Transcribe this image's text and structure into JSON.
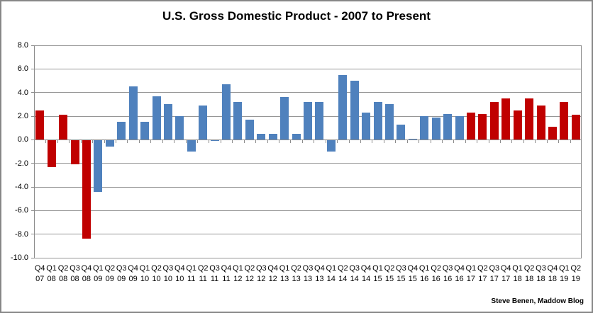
{
  "chart_data": {
    "type": "bar",
    "title": "U.S. Gross Domestic Product - 2007 to Present",
    "attribution": "Steve Benen, Maddow Blog",
    "xlabel": "",
    "ylabel": "",
    "ylim": [
      -10.0,
      8.0
    ],
    "ytick_step": 2.0,
    "ytick_labels": [
      "8.0",
      "6.0",
      "4.0",
      "2.0",
      "0.0",
      "-2.0",
      "-4.0",
      "-6.0",
      "-8.0",
      "-10.0"
    ],
    "grid": true,
    "legend": false,
    "colors": {
      "blue": "#4F81BD",
      "red": "#C00000",
      "gridline": "#969696",
      "axis": "#8C8C8C",
      "background": "#FFFFFF",
      "border": "#878787"
    },
    "bars": [
      {
        "quarter": "Q4",
        "year": "07",
        "value": 2.5,
        "color": "red"
      },
      {
        "quarter": "Q1",
        "year": "08",
        "value": -2.3,
        "color": "red"
      },
      {
        "quarter": "Q2",
        "year": "08",
        "value": 2.1,
        "color": "red"
      },
      {
        "quarter": "Q3",
        "year": "08",
        "value": -2.1,
        "color": "red"
      },
      {
        "quarter": "Q4",
        "year": "08",
        "value": -8.4,
        "color": "red"
      },
      {
        "quarter": "Q1",
        "year": "09",
        "value": -4.4,
        "color": "blue"
      },
      {
        "quarter": "Q2",
        "year": "09",
        "value": -0.6,
        "color": "blue"
      },
      {
        "quarter": "Q3",
        "year": "09",
        "value": 1.5,
        "color": "blue"
      },
      {
        "quarter": "Q4",
        "year": "09",
        "value": 4.5,
        "color": "blue"
      },
      {
        "quarter": "Q1",
        "year": "10",
        "value": 1.5,
        "color": "blue"
      },
      {
        "quarter": "Q2",
        "year": "10",
        "value": 3.7,
        "color": "blue"
      },
      {
        "quarter": "Q3",
        "year": "10",
        "value": 3.0,
        "color": "blue"
      },
      {
        "quarter": "Q4",
        "year": "10",
        "value": 2.0,
        "color": "blue"
      },
      {
        "quarter": "Q1",
        "year": "11",
        "value": -1.0,
        "color": "blue"
      },
      {
        "quarter": "Q2",
        "year": "11",
        "value": 2.9,
        "color": "blue"
      },
      {
        "quarter": "Q3",
        "year": "11",
        "value": -0.1,
        "color": "blue"
      },
      {
        "quarter": "Q4",
        "year": "11",
        "value": 4.7,
        "color": "blue"
      },
      {
        "quarter": "Q1",
        "year": "12",
        "value": 3.2,
        "color": "blue"
      },
      {
        "quarter": "Q2",
        "year": "12",
        "value": 1.7,
        "color": "blue"
      },
      {
        "quarter": "Q3",
        "year": "12",
        "value": 0.5,
        "color": "blue"
      },
      {
        "quarter": "Q4",
        "year": "12",
        "value": 0.5,
        "color": "blue"
      },
      {
        "quarter": "Q1",
        "year": "13",
        "value": 3.6,
        "color": "blue"
      },
      {
        "quarter": "Q2",
        "year": "13",
        "value": 0.5,
        "color": "blue"
      },
      {
        "quarter": "Q3",
        "year": "13",
        "value": 3.2,
        "color": "blue"
      },
      {
        "quarter": "Q4",
        "year": "13",
        "value": 3.2,
        "color": "blue"
      },
      {
        "quarter": "Q1",
        "year": "14",
        "value": -1.0,
        "color": "blue"
      },
      {
        "quarter": "Q2",
        "year": "14",
        "value": 5.5,
        "color": "blue"
      },
      {
        "quarter": "Q3",
        "year": "14",
        "value": 5.0,
        "color": "blue"
      },
      {
        "quarter": "Q4",
        "year": "14",
        "value": 2.3,
        "color": "blue"
      },
      {
        "quarter": "Q1",
        "year": "15",
        "value": 3.2,
        "color": "blue"
      },
      {
        "quarter": "Q2",
        "year": "15",
        "value": 3.0,
        "color": "blue"
      },
      {
        "quarter": "Q3",
        "year": "15",
        "value": 1.3,
        "color": "blue"
      },
      {
        "quarter": "Q4",
        "year": "15",
        "value": 0.1,
        "color": "blue"
      },
      {
        "quarter": "Q1",
        "year": "16",
        "value": 2.0,
        "color": "blue"
      },
      {
        "quarter": "Q2",
        "year": "16",
        "value": 1.9,
        "color": "blue"
      },
      {
        "quarter": "Q3",
        "year": "16",
        "value": 2.2,
        "color": "blue"
      },
      {
        "quarter": "Q4",
        "year": "16",
        "value": 2.0,
        "color": "blue"
      },
      {
        "quarter": "Q1",
        "year": "17",
        "value": 2.3,
        "color": "red"
      },
      {
        "quarter": "Q2",
        "year": "17",
        "value": 2.2,
        "color": "red"
      },
      {
        "quarter": "Q3",
        "year": "17",
        "value": 3.2,
        "color": "red"
      },
      {
        "quarter": "Q4",
        "year": "17",
        "value": 3.5,
        "color": "red"
      },
      {
        "quarter": "Q1",
        "year": "18",
        "value": 2.5,
        "color": "red"
      },
      {
        "quarter": "Q2",
        "year": "18",
        "value": 3.5,
        "color": "red"
      },
      {
        "quarter": "Q3",
        "year": "18",
        "value": 2.9,
        "color": "red"
      },
      {
        "quarter": "Q4",
        "year": "18",
        "value": 1.1,
        "color": "red"
      },
      {
        "quarter": "Q1",
        "year": "19",
        "value": 3.2,
        "color": "red"
      },
      {
        "quarter": "Q2",
        "year": "19",
        "value": 2.1,
        "color": "red"
      }
    ]
  }
}
